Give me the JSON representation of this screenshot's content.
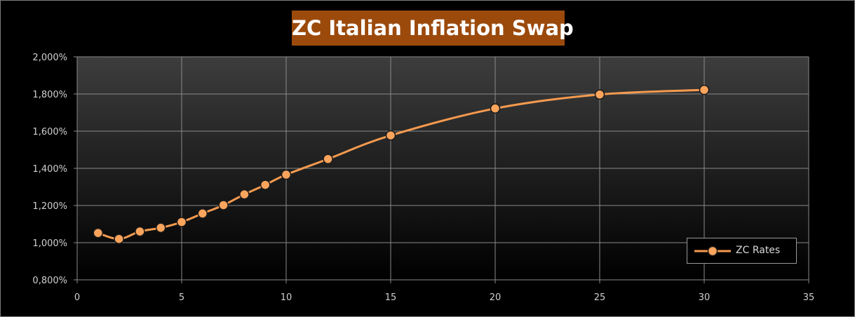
{
  "colors": {
    "title_background": "#9b4a0c",
    "series_line": "#f59a4f",
    "marker_fill": "#fba45c",
    "marker_stroke": "#1a1a1a",
    "plot_top": "#3d3d3d",
    "plot_bottom": "#000000",
    "gridline": "#8a8a8a",
    "tick_text": "#cfcfcf"
  },
  "chart_data": {
    "type": "line",
    "title": "ZC Italian Inflation Swap",
    "xlabel": "",
    "ylabel": "",
    "xlim": [
      0,
      35
    ],
    "ylim": [
      0.8,
      2.0
    ],
    "x_ticks": [
      0,
      5,
      10,
      15,
      20,
      25,
      30,
      35
    ],
    "x_tick_labels": [
      "0",
      "5",
      "10",
      "15",
      "20",
      "25",
      "30",
      "35"
    ],
    "y_ticks": [
      0.8,
      1.0,
      1.2,
      1.4,
      1.6,
      1.8,
      2.0
    ],
    "y_tick_labels": [
      "0,800%",
      "1,000%",
      "1,200%",
      "1,400%",
      "1,600%",
      "1,800%",
      "2,000%"
    ],
    "grid": true,
    "smooth": true,
    "legend_position": "bottom-right",
    "series": [
      {
        "name": "ZC Rates",
        "x": [
          1,
          2,
          3,
          4,
          5,
          6,
          7,
          8,
          9,
          10,
          12,
          15,
          20,
          25,
          30
        ],
        "y": [
          1.052,
          1.02,
          1.06,
          1.08,
          1.111,
          1.157,
          1.202,
          1.26,
          1.311,
          1.366,
          1.45,
          1.577,
          1.722,
          1.797,
          1.822
        ]
      }
    ]
  }
}
